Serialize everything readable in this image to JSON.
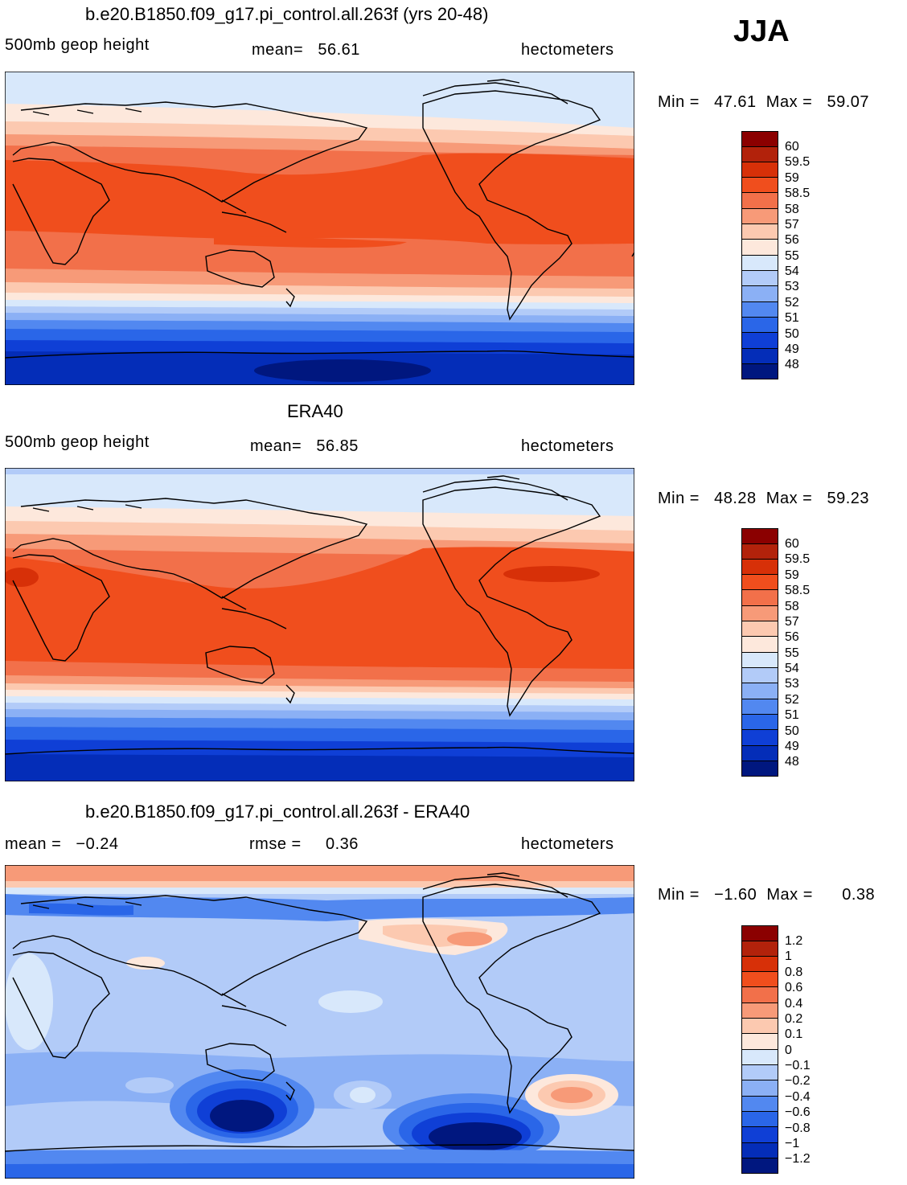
{
  "season": "JJA",
  "panels": [
    {
      "title": "b.e20.B1850.f09_g17.pi_control.all.263f (yrs 20-48)",
      "left_label": "500mb geop height",
      "mid_label": "mean=   56.61",
      "right_label": "hectometers",
      "minmax": "Min =   47.61  Max =   59.07",
      "ticks": [
        "60",
        "59.5",
        "59",
        "58.5",
        "58",
        "57",
        "56",
        "55",
        "54",
        "53",
        "52",
        "51",
        "50",
        "49",
        "48"
      ],
      "colors": [
        "#8b0000",
        "#b2220b",
        "#d73008",
        "#f04e1d",
        "#f2704a",
        "#f79a78",
        "#fcc9b0",
        "#fde8dc",
        "#d8e8fb",
        "#b2cbf8",
        "#8bb0f5",
        "#5288f0",
        "#2a66e8",
        "#0f3fd6",
        "#042db8",
        "#00177f"
      ]
    },
    {
      "title": "ERA40",
      "left_label": "500mb geop height",
      "mid_label": "mean=   56.85",
      "right_label": "hectometers",
      "minmax": "Min =   48.28  Max =   59.23",
      "ticks": [
        "60",
        "59.5",
        "59",
        "58.5",
        "58",
        "57",
        "56",
        "55",
        "54",
        "53",
        "52",
        "51",
        "50",
        "49",
        "48"
      ],
      "colors": [
        "#8b0000",
        "#b2220b",
        "#d73008",
        "#f04e1d",
        "#f2704a",
        "#f79a78",
        "#fcc9b0",
        "#fde8dc",
        "#d8e8fb",
        "#b2cbf8",
        "#8bb0f5",
        "#5288f0",
        "#2a66e8",
        "#0f3fd6",
        "#042db8",
        "#00177f"
      ]
    },
    {
      "title": "b.e20.B1850.f09_g17.pi_control.all.263f - ERA40",
      "left_label": "mean =   −0.24",
      "mid_label": "rmse =     0.36",
      "right_label": "hectometers",
      "minmax": "Min =   −1.60  Max =      0.38",
      "ticks": [
        "1.2",
        "1",
        "0.8",
        "0.6",
        "0.4",
        "0.2",
        "0.1",
        "0",
        "−0.1",
        "−0.2",
        "−0.4",
        "−0.6",
        "−0.8",
        "−1",
        "−1.2"
      ],
      "colors": [
        "#8b0000",
        "#b2220b",
        "#d73008",
        "#f04e1d",
        "#f2704a",
        "#f79a78",
        "#fcc9b0",
        "#fde8dc",
        "#d8e8fb",
        "#b2cbf8",
        "#8bb0f5",
        "#5288f0",
        "#2a66e8",
        "#0f3fd6",
        "#042db8",
        "#00177f"
      ]
    }
  ]
}
